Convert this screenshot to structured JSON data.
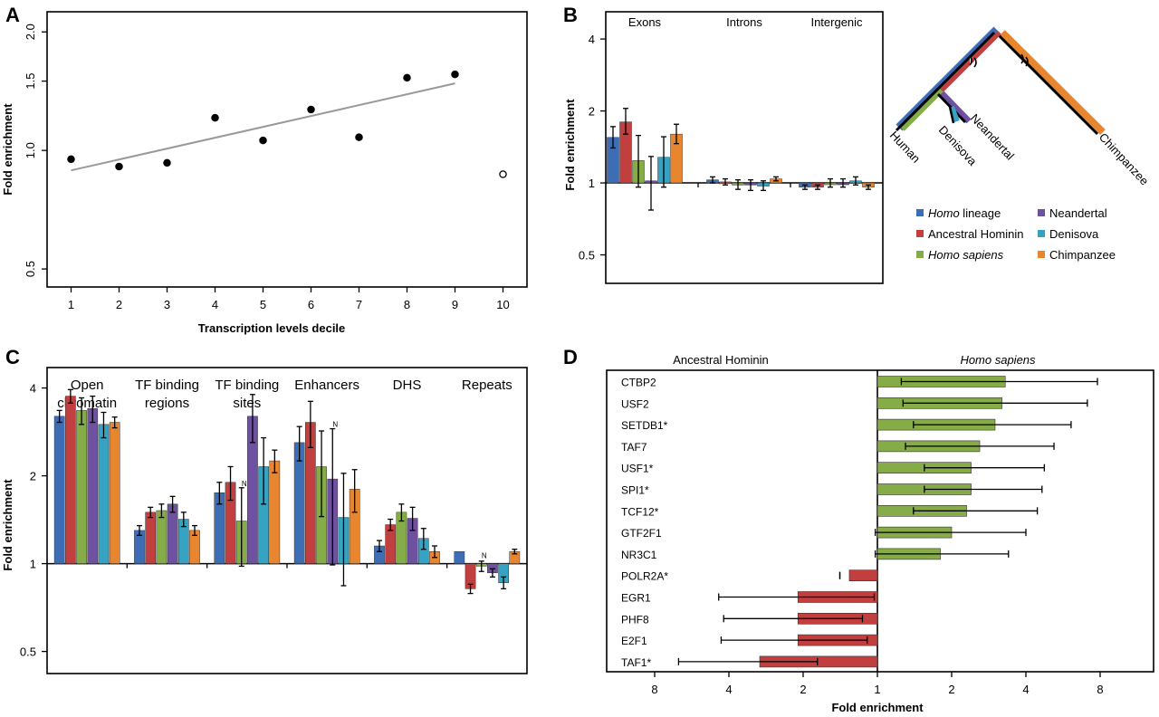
{
  "panels": {
    "A": "A",
    "B": "B",
    "C": "C",
    "D": "D"
  },
  "colors": {
    "homo_lineage": "#3d6eb5",
    "ancestral_hominin": "#c1403f",
    "homo_sapiens": "#86ac47",
    "neandertal": "#6e51a0",
    "denisova": "#36a3c2",
    "chimpanzee": "#e7862f",
    "axis": "#000000",
    "trend": "#999999"
  },
  "chart_data": [
    {
      "id": "A",
      "type": "scatter",
      "title": "",
      "xlabel": "Transcription levels decile",
      "ylabel": "Fold enrichment",
      "log_y": true,
      "ylim": [
        0.45,
        2.25
      ],
      "xlim": [
        0.5,
        10.5
      ],
      "xticks": [
        "1",
        "2",
        "3",
        "4",
        "5",
        "6",
        "7",
        "8",
        "9",
        "10"
      ],
      "yticks": [
        "0.5",
        "1.0",
        "1.5",
        "2.0"
      ],
      "points": [
        {
          "x": 1,
          "y": 0.95,
          "filled": true
        },
        {
          "x": 2,
          "y": 0.91,
          "filled": true
        },
        {
          "x": 3,
          "y": 0.93,
          "filled": true
        },
        {
          "x": 4,
          "y": 1.21,
          "filled": true
        },
        {
          "x": 5,
          "y": 1.06,
          "filled": true
        },
        {
          "x": 6,
          "y": 1.27,
          "filled": true
        },
        {
          "x": 7,
          "y": 1.08,
          "filled": true
        },
        {
          "x": 8,
          "y": 1.53,
          "filled": true
        },
        {
          "x": 9,
          "y": 1.56,
          "filled": true
        },
        {
          "x": 10,
          "y": 0.87,
          "filled": false
        }
      ],
      "trend": [
        {
          "x": 1,
          "y": 0.89
        },
        {
          "x": 9,
          "y": 1.48
        }
      ]
    },
    {
      "id": "B",
      "type": "bar",
      "ylabel": "Fold enrichment",
      "log_y": true,
      "ylim": [
        0.38,
        5.2
      ],
      "yticks": [
        "0.5",
        "1",
        "2",
        "4"
      ],
      "categories": [
        "Exons",
        "Introns",
        "Intergenic"
      ],
      "series": [
        {
          "name": "Homo lineage",
          "values": [
            1.55,
            1.03,
            0.96
          ],
          "err": [
            [
              1.4,
              1.72
            ],
            [
              1.0,
              1.06
            ],
            [
              0.94,
              0.98
            ]
          ]
        },
        {
          "name": "Ancestral Hominin",
          "values": [
            1.8,
            1.01,
            0.96
          ],
          "err": [
            [
              1.6,
              2.05
            ],
            [
              0.98,
              1.04
            ],
            [
              0.94,
              0.98
            ]
          ]
        },
        {
          "name": "Homo sapiens",
          "values": [
            1.24,
            0.98,
            1.0
          ],
          "err": [
            [
              0.96,
              1.58
            ],
            [
              0.94,
              1.03
            ],
            [
              0.96,
              1.04
            ]
          ]
        },
        {
          "name": "Neandertal",
          "values": [
            1.02,
            0.98,
            1.0
          ],
          "err": [
            [
              0.77,
              1.29
            ],
            [
              0.93,
              1.03
            ],
            [
              0.96,
              1.04
            ]
          ]
        },
        {
          "name": "Denisova",
          "values": [
            1.28,
            0.97,
            1.02
          ],
          "err": [
            [
              0.96,
              1.56
            ],
            [
              0.93,
              1.02
            ],
            [
              0.98,
              1.06
            ]
          ]
        },
        {
          "name": "Chimpanzee",
          "values": [
            1.6,
            1.04,
            0.96
          ],
          "err": [
            [
              1.46,
              1.76
            ],
            [
              1.02,
              1.06
            ],
            [
              0.94,
              0.98
            ]
          ]
        }
      ],
      "tree": {
        "human": "Human",
        "denisova": "Denisova",
        "neandertal": "Neandertal",
        "chimpanzee": "Chimpanzee"
      },
      "legend": [
        {
          "italic": "Homo",
          "text": " lineage"
        },
        {
          "italic": "",
          "text": "Ancestral Hominin"
        },
        {
          "italic": "Homo sapiens",
          "text": ""
        },
        {
          "italic": "",
          "text": "Neandertal"
        },
        {
          "italic": "",
          "text": "Denisova"
        },
        {
          "italic": "",
          "text": "Chimpanzee"
        }
      ]
    },
    {
      "id": "C",
      "type": "bar",
      "ylabel": "Fold enrichment",
      "log_y": true,
      "ylim": [
        0.42,
        4.7
      ],
      "yticks": [
        "0.5",
        "1",
        "2",
        "4"
      ],
      "categories": [
        {
          "line1": "Open",
          "line2": "chromatin"
        },
        {
          "line1": "TF binding",
          "line2": "regions"
        },
        {
          "line1": "TF binding",
          "line2": "sites"
        },
        {
          "line1": "Enhancers",
          "line2": ""
        },
        {
          "line1": "DHS",
          "line2": ""
        },
        {
          "line1": "Repeats",
          "line2": ""
        }
      ],
      "na_label": "N",
      "na_marks": [
        [
          2,
          2
        ],
        [
          3,
          3
        ],
        [
          5,
          2
        ]
      ],
      "series": [
        {
          "name": "Homo lineage",
          "values": [
            3.2,
            1.3,
            1.75,
            2.6,
            1.15,
            1.1
          ],
          "err": [
            [
              3.05,
              3.35
            ],
            [
              1.25,
              1.35
            ],
            [
              1.6,
              1.9
            ],
            [
              2.25,
              2.95
            ],
            [
              1.1,
              1.2
            ],
            null
          ]
        },
        {
          "name": "Ancestral Hominin",
          "values": [
            3.75,
            1.5,
            1.9,
            3.05,
            1.36,
            0.82
          ],
          "err": [
            [
              3.55,
              3.95
            ],
            [
              1.44,
              1.56
            ],
            [
              1.65,
              2.15
            ],
            [
              2.5,
              3.6
            ],
            [
              1.3,
              1.42
            ],
            [
              0.79,
              0.85
            ]
          ]
        },
        {
          "name": "Homo sapiens",
          "values": [
            3.35,
            1.52,
            1.4,
            2.15,
            1.5,
            0.98
          ],
          "err": [
            [
              3.0,
              3.7
            ],
            [
              1.44,
              1.6
            ],
            [
              0.98,
              1.82
            ],
            [
              1.45,
              2.85
            ],
            [
              1.4,
              1.6
            ],
            [
              0.94,
              1.02
            ]
          ]
        },
        {
          "name": "Neandertal",
          "values": [
            3.4,
            1.6,
            3.2,
            1.95,
            1.43,
            0.93
          ],
          "err": [
            [
              3.05,
              3.75
            ],
            [
              1.5,
              1.7
            ],
            [
              2.6,
              3.8
            ],
            [
              0.99,
              2.9
            ],
            [
              1.3,
              1.56
            ],
            [
              0.9,
              0.96
            ]
          ]
        },
        {
          "name": "Denisova",
          "values": [
            3.0,
            1.42,
            2.15,
            1.44,
            1.22,
            0.86
          ],
          "err": [
            [
              2.7,
              3.3
            ],
            [
              1.34,
              1.5
            ],
            [
              1.6,
              2.7
            ],
            [
              0.84,
              2.04
            ],
            [
              1.12,
              1.32
            ],
            [
              0.82,
              0.9
            ]
          ]
        },
        {
          "name": "Chimpanzee",
          "values": [
            3.05,
            1.3,
            2.25,
            1.8,
            1.1,
            1.1
          ],
          "err": [
            [
              2.92,
              3.18
            ],
            [
              1.25,
              1.35
            ],
            [
              2.05,
              2.45
            ],
            [
              1.5,
              2.1
            ],
            [
              1.05,
              1.15
            ],
            [
              1.08,
              1.12
            ]
          ]
        }
      ]
    },
    {
      "id": "D",
      "type": "bar",
      "orientation": "horizontal",
      "xlabel": "Fold enrichment",
      "left_header": "Ancestral Hominin",
      "right_header": "Homo sapiens",
      "xticks": [
        "8",
        "4",
        "2",
        "1",
        "2",
        "4",
        "8"
      ],
      "rows": [
        {
          "label": "CTBP2",
          "side": "sapiens",
          "value": 3.3,
          "err": [
            1.25,
            7.8
          ]
        },
        {
          "label": "USF2",
          "side": "sapiens",
          "value": 3.2,
          "err": [
            1.27,
            7.1
          ]
        },
        {
          "label": "SETDB1*",
          "side": "sapiens",
          "value": 3.0,
          "err": [
            1.4,
            6.1
          ]
        },
        {
          "label": "TAF7",
          "side": "sapiens",
          "value": 2.6,
          "err": [
            1.3,
            5.2
          ]
        },
        {
          "label": "USF1*",
          "side": "sapiens",
          "value": 2.4,
          "err": [
            1.55,
            4.75
          ]
        },
        {
          "label": "SPI1*",
          "side": "sapiens",
          "value": 2.4,
          "err": [
            1.55,
            4.65
          ]
        },
        {
          "label": "TCF12*",
          "side": "sapiens",
          "value": 2.3,
          "err": [
            1.4,
            4.45
          ]
        },
        {
          "label": "GTF2F1",
          "side": "sapiens",
          "value": 2.0,
          "err": [
            0.98,
            4.0
          ]
        },
        {
          "label": "NR3C1",
          "side": "sapiens",
          "value": 1.8,
          "err": [
            0.98,
            3.4
          ]
        },
        {
          "label": "POLR2A*",
          "side": "ancestral",
          "value": 1.3,
          "err": [
            1.42,
            1.42
          ]
        },
        {
          "label": "EGR1",
          "side": "ancestral",
          "value": 2.1,
          "err": [
            4.4,
            1.03
          ]
        },
        {
          "label": "PHF8",
          "side": "ancestral",
          "value": 2.1,
          "err": [
            4.2,
            1.15
          ]
        },
        {
          "label": "E2F1",
          "side": "ancestral",
          "value": 2.1,
          "err": [
            4.3,
            1.1
          ]
        },
        {
          "label": "TAF1*",
          "side": "ancestral",
          "value": 3.0,
          "err": [
            6.4,
            1.75
          ]
        }
      ]
    }
  ]
}
